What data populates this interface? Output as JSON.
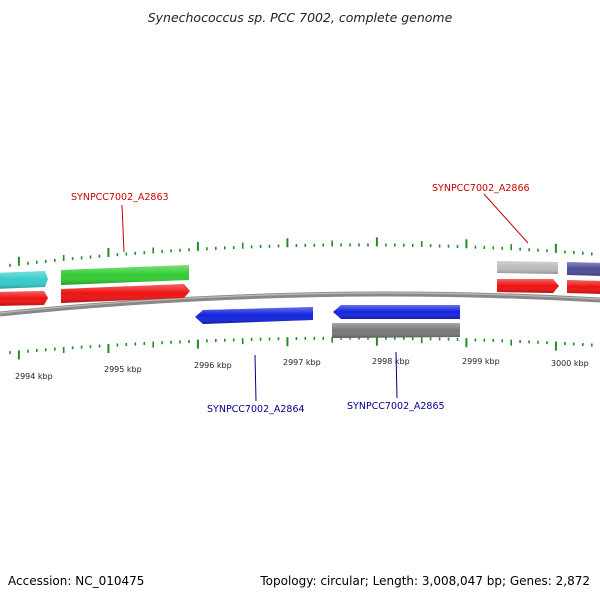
{
  "title": "Synechococcus sp. PCC 7002, complete genome",
  "footer": {
    "accession": "Accession: NC_010475",
    "summary": "Topology: circular; Length: 3,008,047 bp; Genes: 2,872"
  },
  "colors": {
    "backbone": "#888888",
    "tick": "#228b22",
    "forward_label": "#cc0000",
    "reverse_label": "#00008b"
  },
  "scale": {
    "ticks": [
      {
        "label": "2994 kbp"
      },
      {
        "label": "2995 kbp"
      },
      {
        "label": "2996 kbp"
      },
      {
        "label": "2997 kbp"
      },
      {
        "label": "2998 kbp"
      },
      {
        "label": "2999 kbp"
      },
      {
        "label": "3000 kbp"
      }
    ]
  },
  "genes": [
    {
      "id": "cyan-gene",
      "color": "#33cccc",
      "strand": "forward",
      "track": "outer"
    },
    {
      "id": "green-gene",
      "color": "#33cc33",
      "strand": "forward",
      "track": "outer"
    },
    {
      "id": "red-gene-left-edge",
      "color": "#ee1111",
      "strand": "forward",
      "track": "cds"
    },
    {
      "id": "red-gene-a2863",
      "color": "#ee1111",
      "strand": "forward",
      "track": "cds"
    },
    {
      "id": "blue-gene-a2864",
      "color": "#1122dd",
      "strand": "reverse",
      "track": "cds"
    },
    {
      "id": "blue-gene-a2865",
      "color": "#1122dd",
      "strand": "reverse",
      "track": "cds"
    },
    {
      "id": "grey-gene-reverse",
      "color": "#777777",
      "strand": "reverse",
      "track": "outer"
    },
    {
      "id": "silver-gene",
      "color": "#bbbbbb",
      "strand": "forward",
      "track": "outer"
    },
    {
      "id": "purple-gene",
      "color": "#4b4b99",
      "strand": "forward",
      "track": "outer"
    },
    {
      "id": "red-gene-a2866",
      "color": "#ee1111",
      "strand": "forward",
      "track": "cds"
    },
    {
      "id": "red-gene-right-edge",
      "color": "#ee1111",
      "strand": "forward",
      "track": "cds"
    }
  ],
  "labels": [
    {
      "text": "SYNPCC7002_A2863",
      "strand": "forward"
    },
    {
      "text": "SYNPCC7002_A2864",
      "strand": "reverse"
    },
    {
      "text": "SYNPCC7002_A2865",
      "strand": "reverse"
    },
    {
      "text": "SYNPCC7002_A2866",
      "strand": "forward"
    }
  ]
}
